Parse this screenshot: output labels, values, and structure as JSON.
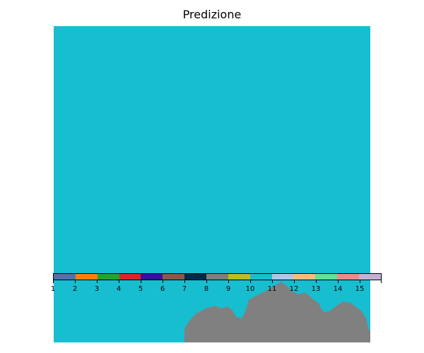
{
  "title": "Predizione",
  "map": {
    "background_class_color": "#17becf",
    "land_color": "#808080",
    "land_icon": "landmass-shape"
  },
  "colorbar": {
    "colors": [
      "#5470aa",
      "#ff7f0e",
      "#2ca02c",
      "#d62728",
      "#3a10a0",
      "#8c564b",
      "#002a4a",
      "#7f7f7f",
      "#bcbd22",
      "#17becf",
      "#aec7e8",
      "#ffbb78",
      "#62e09a",
      "#f08a8a",
      "#c5b0d5"
    ],
    "tick_labels": [
      "1",
      "2",
      "3",
      "4",
      "5",
      "6",
      "7",
      "8",
      "9",
      "10",
      "11",
      "12",
      "13",
      "14",
      "15"
    ]
  }
}
